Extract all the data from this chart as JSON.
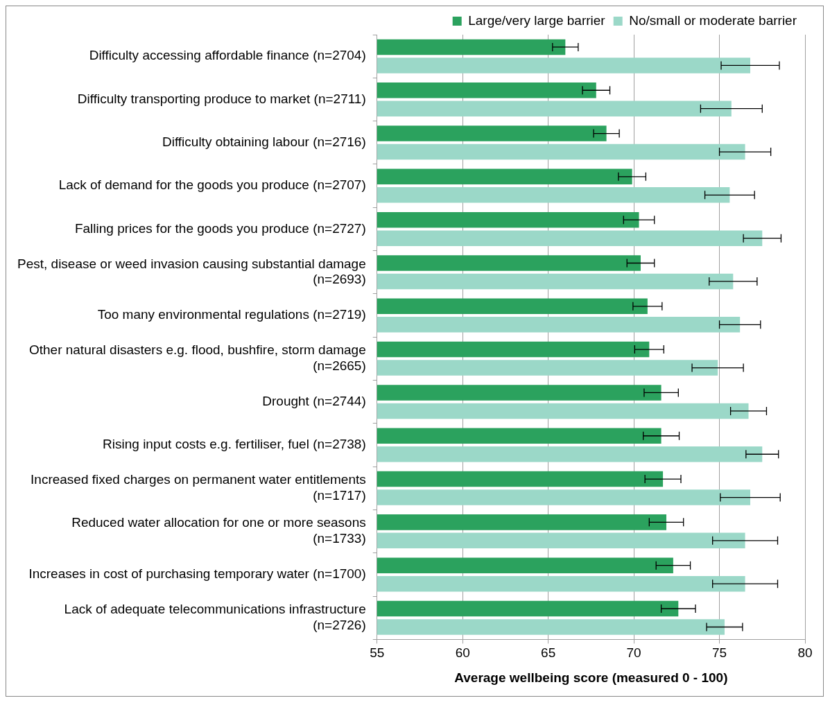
{
  "chart_data": {
    "type": "bar",
    "orientation": "horizontal",
    "xlabel": "Average wellbeing score (measured 0 - 100)",
    "categories": [
      "Difficulty accessing affordable finance (n=2704)",
      "Difficulty transporting produce to market (n=2711)",
      "Difficulty obtaining labour (n=2716)",
      "Lack of demand for the goods you produce (n=2707)",
      "Falling prices for the goods you produce (n=2727)",
      "Pest, disease or weed invasion causing substantial damage (n=2693)",
      "Too many environmental regulations (n=2719)",
      "Other natural disasters e.g. flood, bushfire, storm damage (n=2665)",
      "Drought (n=2744)",
      "Rising input costs e.g. fertiliser, fuel (n=2738)",
      "Increased fixed charges on permanent water entitlements (n=1717)",
      "Reduced water allocation for one or more seasons (n=1733)",
      "Increases in cost of purchasing temporary water (n=1700)",
      "Lack of adequate telecommunications infrastructure (n=2726)"
    ],
    "series": [
      {
        "name": "Large/very large barrier",
        "color": "#2ba25e",
        "values": [
          66.0,
          67.8,
          68.4,
          69.9,
          70.3,
          70.4,
          70.8,
          70.9,
          71.6,
          71.6,
          71.7,
          71.9,
          72.3,
          72.6
        ],
        "errors": [
          0.75,
          0.8,
          0.75,
          0.8,
          0.9,
          0.8,
          0.85,
          0.85,
          1.0,
          1.05,
          1.05,
          1.0,
          1.0,
          1.0
        ]
      },
      {
        "name": "No/small or moderate barrier",
        "color": "#9bd8c8",
        "values": [
          76.8,
          75.7,
          76.5,
          75.6,
          77.5,
          75.8,
          76.2,
          74.9,
          76.7,
          77.5,
          76.8,
          76.5,
          76.5,
          75.3
        ],
        "errors": [
          1.7,
          1.8,
          1.5,
          1.45,
          1.1,
          1.4,
          1.2,
          1.5,
          1.05,
          0.95,
          1.75,
          1.9,
          1.9,
          1.05
        ]
      }
    ],
    "xlim": [
      55,
      80
    ],
    "xticks": [
      55,
      60,
      65,
      70,
      75,
      80
    ],
    "grid": "x",
    "legend": "top right"
  }
}
